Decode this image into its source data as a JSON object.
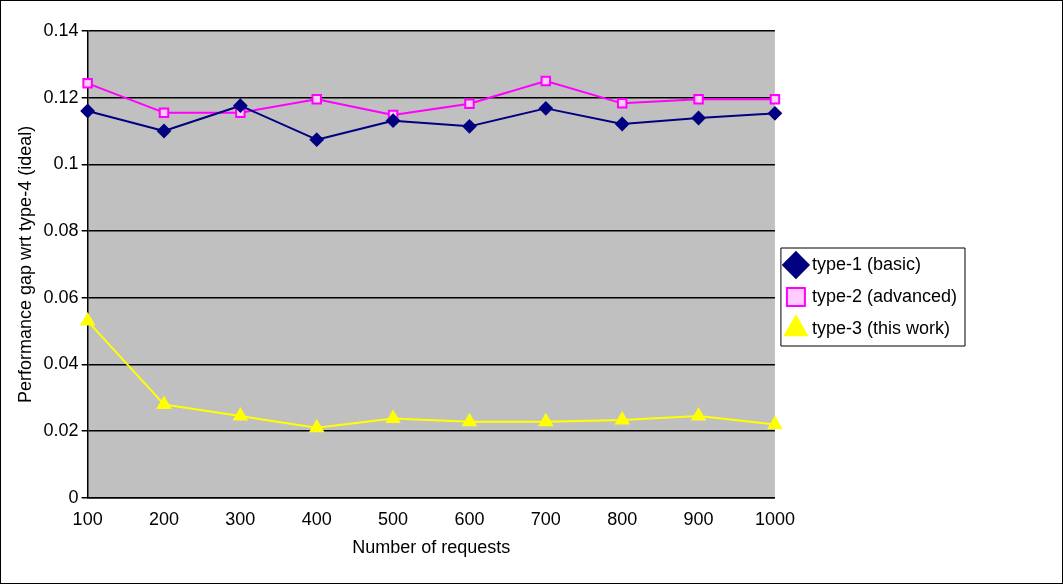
{
  "chart_data": {
    "type": "line",
    "xlabel": "Number of requests",
    "ylabel": "Performance gap wrt type-4 (ideal)",
    "categories": [
      "100",
      "200",
      "300",
      "400",
      "500",
      "600",
      "700",
      "800",
      "900",
      "1000"
    ],
    "series": [
      {
        "name": "type-1 (basic)",
        "color": "#000080",
        "marker": "diamond",
        "values": [
          0.116,
          0.11,
          0.1176,
          0.1074,
          0.1131,
          0.1114,
          0.1168,
          0.1121,
          0.1139,
          0.1153
        ]
      },
      {
        "name": "type-2 (advanced)",
        "color": "#ff00ff",
        "marker": "square",
        "values": [
          0.1243,
          0.1155,
          0.1155,
          0.1195,
          0.1148,
          0.1182,
          0.125,
          0.1183,
          0.1195,
          0.1195
        ]
      },
      {
        "name": "type-3 (this work)",
        "color": "#ffff00",
        "marker": "triangle",
        "values": [
          0.053,
          0.028,
          0.0245,
          0.021,
          0.0238,
          0.0228,
          0.0228,
          0.0233,
          0.0245,
          0.022
        ]
      }
    ],
    "ylim": [
      0,
      0.14
    ],
    "yticks": [
      0,
      0.02,
      0.04,
      0.06,
      0.08,
      0.1,
      0.12,
      0.14
    ],
    "grid": "y",
    "legend": "right",
    "line_style": "solid"
  }
}
